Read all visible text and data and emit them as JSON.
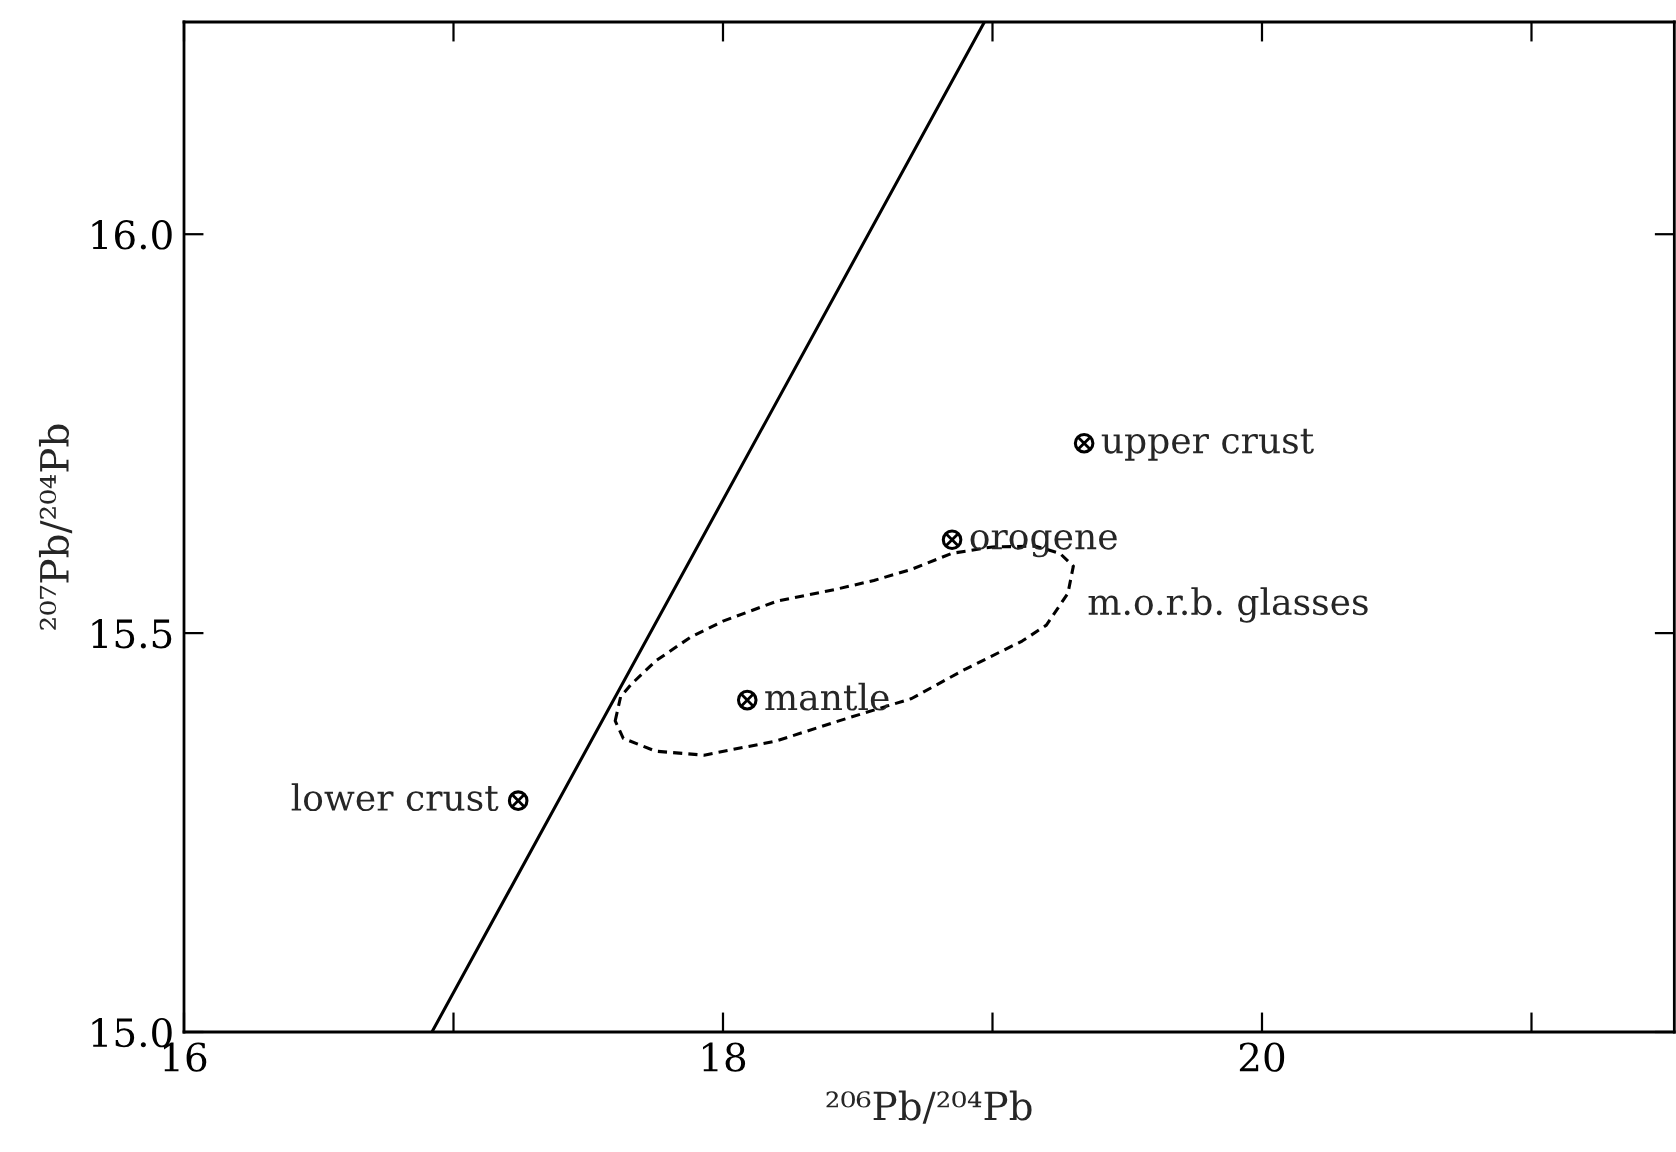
{
  "chart_data": {
    "type": "scatter",
    "xlabel": "²⁰⁶Pb/²⁰⁴Pb",
    "ylabel": "²⁰⁷Pb/²⁰⁴Pb",
    "series": [
      {
        "type": "line",
        "color": "#000000",
        "line_style": "solid",
        "marker": "none",
        "x": [
          16.92,
          18.97
        ],
        "values": [
          15.0,
          16.266
        ]
      },
      {
        "color": "#000000",
        "marker": "circle",
        "x": [
          17.24,
          18.09,
          18.85,
          19.34
        ],
        "values": [
          15.29,
          15.416,
          15.617,
          15.738
        ]
      }
    ],
    "annotations": [
      {
        "text": "lower crust",
        "x": 17.24,
        "y": 15.29
      },
      {
        "text": "mantle",
        "x": 18.09,
        "y": 15.416
      },
      {
        "text": "orogene",
        "x": 18.85,
        "y": 15.617
      },
      {
        "text": "upper crust",
        "x": 19.34,
        "y": 15.738
      },
      "m.o.r.b. glasses"
    ],
    "xlim": [
      16,
      21.53
    ],
    "ylim": [
      15.0,
      16.266
    ],
    "xticks": [
      16,
      {
        "value": 17,
        "label": null
      },
      18,
      {
        "value": 19,
        "label": null
      },
      20,
      {
        "value": 21,
        "label": null
      }
    ],
    "yticks": [
      {
        "value": 15.0,
        "label": "15.0"
      },
      15.5,
      {
        "value": 16.0,
        "label": "16.0"
      }
    ],
    "grid": false,
    "legend": false
  }
}
